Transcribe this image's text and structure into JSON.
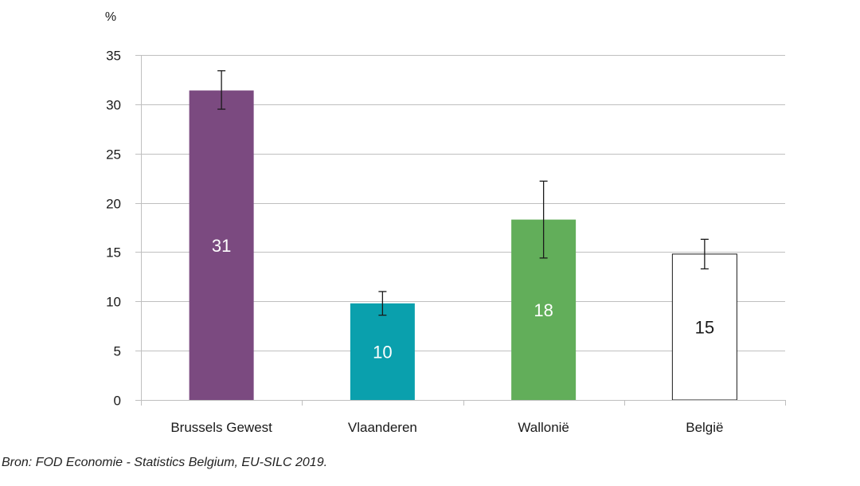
{
  "chart_data": {
    "type": "bar",
    "y_unit": "%",
    "ylim": [
      0,
      35
    ],
    "yticks": [
      0,
      5,
      10,
      15,
      20,
      25,
      30,
      35
    ],
    "grid": true,
    "categories": [
      "Brussels Gewest",
      "Vlaanderen",
      "Wallonië",
      "België"
    ],
    "values": [
      31.4,
      9.8,
      18.3,
      14.8
    ],
    "data_labels": [
      "31",
      "10",
      "18",
      "15"
    ],
    "error_low": [
      29.5,
      8.6,
      14.4,
      13.3
    ],
    "error_high": [
      33.4,
      11.0,
      22.2,
      16.3
    ],
    "bar_colors": [
      "#7b4a80",
      "#0aa0ad",
      "#62ae5a",
      "#ffffff"
    ],
    "label_colors": [
      "#ffffff",
      "#ffffff",
      "#ffffff",
      "#1a1a1a"
    ]
  },
  "source": "Bron: FOD Economie - Statistics Belgium, EU-SILC 2019."
}
